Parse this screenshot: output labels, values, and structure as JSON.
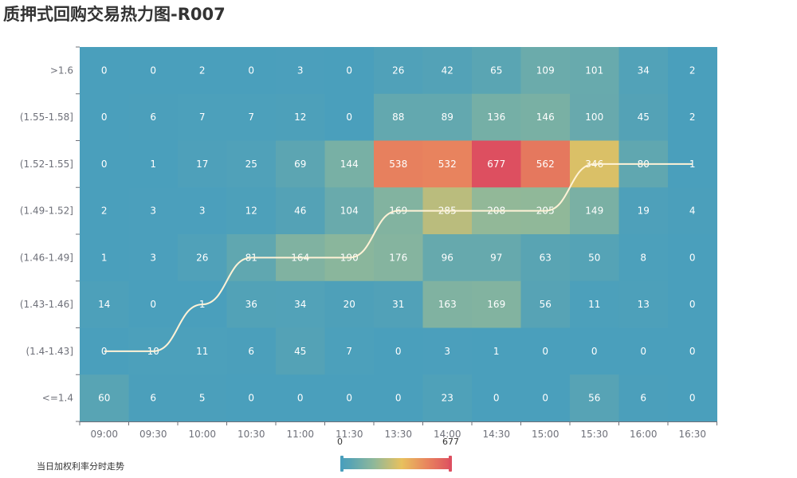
{
  "title": "质押式回购交易热力图-R007",
  "legend": {
    "label": "当日加权利率分时走势",
    "line_color": "#fff2d6"
  },
  "visual_map": {
    "min": 0,
    "max": 677,
    "min_label": "0",
    "max_label": "677",
    "colors": [
      "#4a9fbc",
      "#56a3b5",
      "#8fb89a",
      "#e8c15e",
      "#e8845e",
      "#dd4f60"
    ]
  },
  "chart_data": {
    "type": "heatmap",
    "title": "质押式回购交易热力图-R007",
    "x": [
      "09:00",
      "09:30",
      "10:00",
      "10:30",
      "11:00",
      "11:30",
      "13:30",
      "14:00",
      "14:30",
      "15:00",
      "15:30",
      "16:00",
      "16:30"
    ],
    "y": [
      ">1.6",
      "(1.55-1.58]",
      "(1.52-1.55]",
      "(1.49-1.52]",
      "(1.46-1.49]",
      "(1.43-1.46]",
      "(1.4-1.43]",
      "<=1.4"
    ],
    "values": [
      [
        0,
        0,
        2,
        0,
        3,
        0,
        26,
        42,
        65,
        109,
        101,
        34,
        2
      ],
      [
        0,
        6,
        7,
        7,
        12,
        0,
        88,
        89,
        136,
        146,
        100,
        45,
        2
      ],
      [
        0,
        1,
        17,
        25,
        69,
        144,
        538,
        532,
        677,
        562,
        346,
        80,
        1
      ],
      [
        2,
        3,
        3,
        12,
        46,
        104,
        169,
        285,
        208,
        205,
        149,
        19,
        4
      ],
      [
        1,
        3,
        26,
        81,
        164,
        190,
        176,
        96,
        97,
        63,
        50,
        8,
        0
      ],
      [
        14,
        0,
        1,
        36,
        34,
        20,
        31,
        163,
        169,
        56,
        11,
        13,
        0
      ],
      [
        0,
        10,
        11,
        6,
        45,
        7,
        0,
        3,
        1,
        0,
        0,
        0,
        0
      ],
      [
        60,
        6,
        5,
        0,
        0,
        0,
        0,
        23,
        0,
        0,
        56,
        6,
        0
      ]
    ],
    "trend_line": {
      "name": "当日加权利率分时走势",
      "values": [
        "(1.4-1.43]",
        "(1.4-1.43]",
        "(1.43-1.46]",
        "(1.46-1.49]",
        "(1.46-1.49]",
        "(1.46-1.49]",
        "(1.49-1.52]",
        "(1.49-1.52]",
        "(1.49-1.52]",
        "(1.49-1.52]",
        "(1.52-1.55]",
        "(1.52-1.55]",
        "(1.52-1.55]"
      ]
    },
    "visual_map_range": [
      0,
      677
    ],
    "grid": false,
    "legend_position": "bottom-left"
  }
}
